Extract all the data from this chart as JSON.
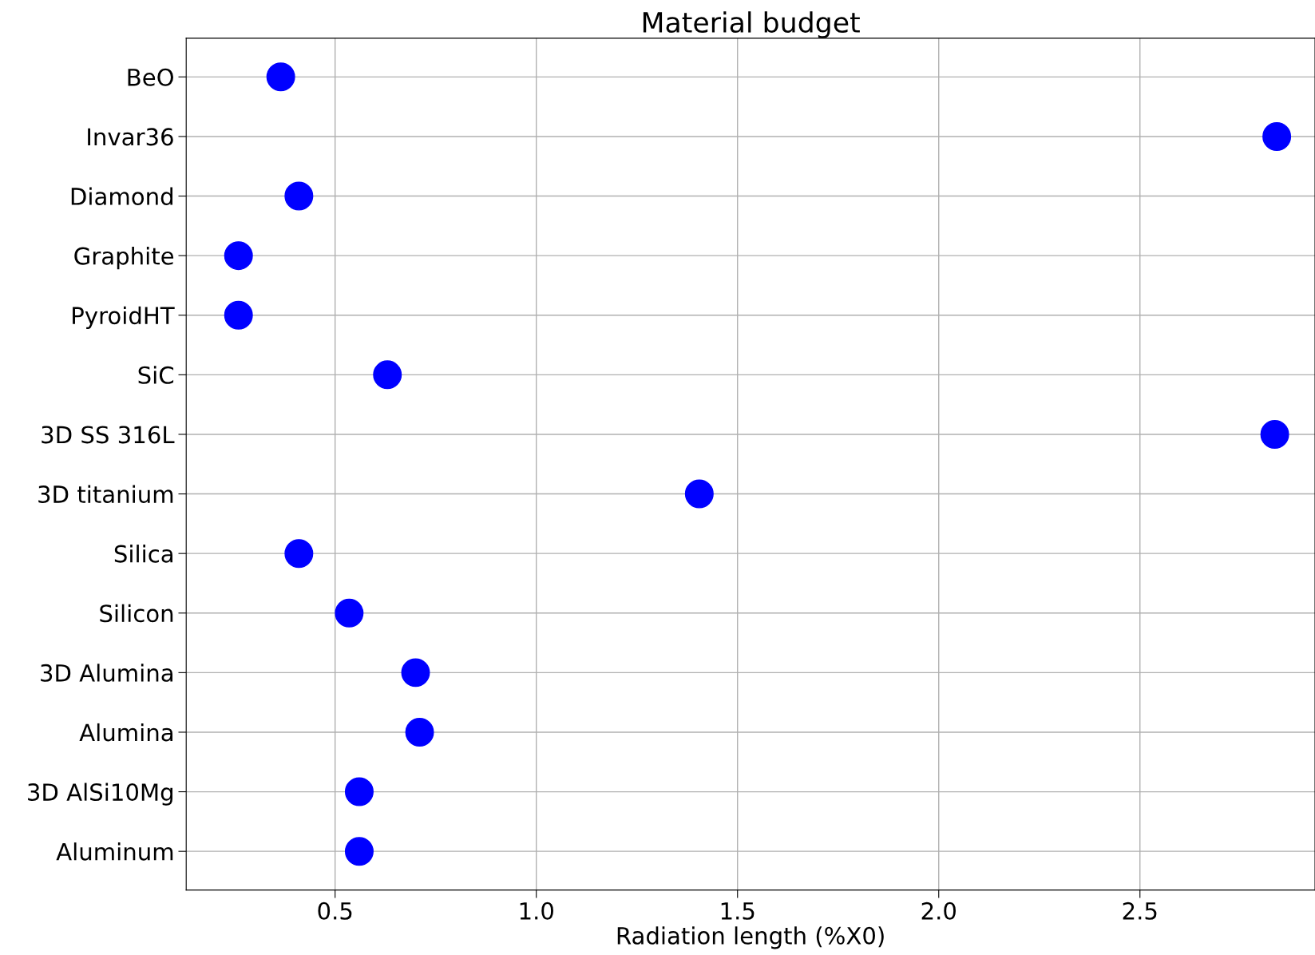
{
  "chart_data": {
    "type": "scatter",
    "title": "Material budget",
    "xlabel": "Radiation length (%X0)",
    "orientation": "horizontal",
    "categories": [
      "BeO",
      "Invar36",
      "Diamond",
      "Graphite",
      "PyroidHT",
      "SiC",
      "3D SS 316L",
      "3D titanium",
      "Silica",
      "Silicon",
      "3D Alumina",
      "Alumina",
      "3D AlSi10Mg",
      "Aluminum"
    ],
    "values": [
      0.365,
      2.84,
      0.41,
      0.26,
      0.26,
      0.63,
      2.835,
      1.405,
      0.41,
      0.535,
      0.7,
      0.71,
      0.56,
      0.56
    ],
    "color": "#0000ff",
    "marker": "circle",
    "xlim": [
      0.13,
      2.935
    ],
    "xticks": [
      0.5,
      {
        "value": 1,
        "label": "1.0"
      },
      1.5,
      {
        "value": 2,
        "label": "2.0"
      },
      2.5
    ],
    "grid": true
  }
}
